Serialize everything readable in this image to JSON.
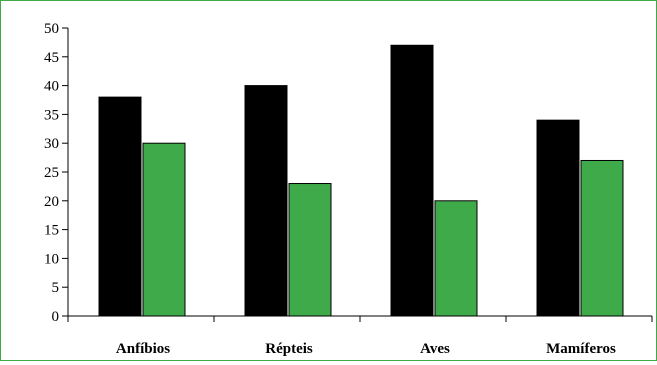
{
  "chart_data": {
    "type": "bar",
    "categories": [
      "Anfíbios",
      "Répteis",
      "Aves",
      "Mamíferos"
    ],
    "series": [
      {
        "values": [
          38,
          40,
          47,
          34
        ],
        "color": "#000000"
      },
      {
        "values": [
          30,
          23,
          20,
          27
        ],
        "color": "#3faa4a"
      }
    ],
    "ylim": [
      0,
      50
    ],
    "yticks": [
      0,
      5,
      10,
      15,
      20,
      25,
      30,
      35,
      40,
      45,
      50
    ],
    "grid": false,
    "title": "",
    "xlabel": "",
    "ylabel": ""
  },
  "colors": {
    "frame_border": "#3faa4a",
    "axis": "#000000"
  }
}
